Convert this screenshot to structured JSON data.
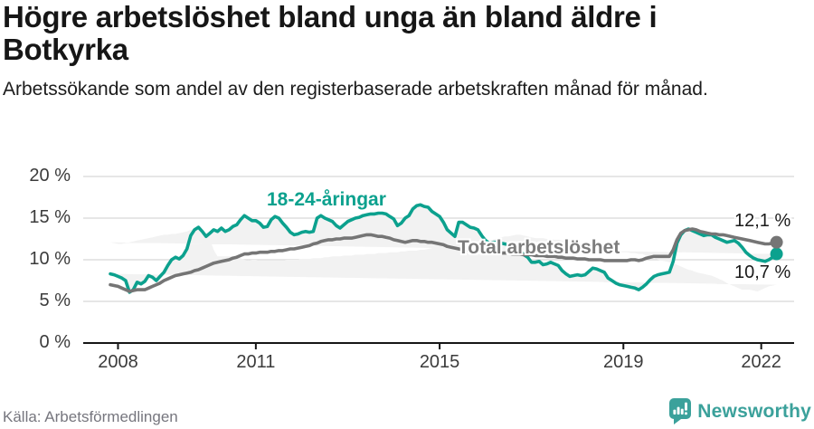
{
  "header": {
    "title": "Högre arbetslöshet bland unga än bland äldre i Botkyrka",
    "subtitle": "Arbetssökande som andel av den registerbaserade arbetskraften månad för månad."
  },
  "chart_data": {
    "type": "line",
    "unit": "%",
    "frequency": "monthly",
    "x_start": "2007-11",
    "grid": "horizontal",
    "ylim": [
      0,
      21.5
    ],
    "y_ticks": [
      "0 %",
      "5 %",
      "10 %",
      "15 %",
      "20 %"
    ],
    "y_tick_values": [
      0,
      5,
      10,
      15,
      20
    ],
    "x_ticks": [
      "2008",
      "2011",
      "2015",
      "2019",
      "2022"
    ],
    "band_fill_color": "#f2f2f2",
    "series": [
      {
        "name": "18-24-åringar",
        "color": "#0ca18e",
        "last_value_label": "10,7 %",
        "values": [
          8.3,
          8.2,
          8.0,
          7.8,
          7.5,
          6.1,
          6.4,
          7.3,
          7.1,
          7.4,
          8.1,
          7.9,
          7.5,
          8.0,
          8.5,
          9.3,
          10.0,
          10.3,
          10.1,
          10.5,
          11.3,
          12.9,
          13.6,
          13.9,
          13.4,
          12.8,
          13.2,
          13.6,
          13.4,
          13.8,
          13.4,
          13.6,
          14.0,
          14.2,
          14.8,
          15.3,
          15.0,
          14.7,
          14.7,
          14.4,
          13.9,
          14.0,
          14.8,
          15.2,
          15.0,
          14.4,
          13.9,
          13.3,
          13.0,
          13.1,
          13.3,
          13.4,
          13.3,
          13.4,
          15.0,
          15.3,
          15.0,
          14.8,
          14.6,
          14.1,
          13.8,
          14.2,
          14.6,
          14.8,
          15.0,
          15.1,
          15.3,
          15.4,
          15.5,
          15.5,
          15.6,
          15.6,
          15.5,
          15.2,
          14.9,
          14.1,
          14.4,
          15.0,
          15.3,
          16.1,
          16.5,
          16.6,
          16.4,
          16.3,
          15.8,
          15.5,
          15.2,
          14.5,
          13.6,
          13.2,
          12.8,
          14.5,
          14.5,
          14.2,
          13.9,
          13.8,
          13.6,
          12.9,
          12.3,
          12.0,
          12.1,
          12.1,
          12.0,
          11.9,
          11.8,
          11.6,
          11.4,
          11.1,
          10.6,
          10.3,
          9.7,
          9.7,
          9.8,
          9.4,
          9.5,
          9.7,
          9.5,
          9.3,
          8.7,
          8.3,
          8.0,
          8.1,
          8.2,
          8.1,
          8.2,
          8.6,
          9.0,
          8.9,
          8.7,
          8.5,
          7.8,
          7.5,
          7.2,
          7.0,
          6.9,
          6.8,
          6.7,
          6.6,
          6.4,
          6.7,
          7.1,
          7.6,
          8.0,
          8.2,
          8.3,
          8.4,
          8.5,
          9.8,
          12.0,
          13.0,
          13.5,
          13.7,
          13.5,
          13.3,
          13.1,
          12.9,
          13.0,
          13.0,
          12.7,
          12.5,
          12.3,
          12.1,
          12.2,
          12.3,
          12.0,
          11.5,
          10.9,
          10.5,
          10.2,
          10.0,
          9.9,
          9.8,
          10.0,
          10.3,
          10.7
        ]
      },
      {
        "name": "Total arbetslöshet",
        "color": "#757575",
        "last_value_label": "12,1 %",
        "values": [
          7.0,
          6.9,
          6.8,
          6.6,
          6.4,
          6.2,
          6.3,
          6.4,
          6.4,
          6.4,
          6.6,
          6.8,
          7.0,
          7.2,
          7.5,
          7.7,
          7.9,
          8.1,
          8.2,
          8.3,
          8.4,
          8.5,
          8.7,
          8.8,
          9.0,
          9.2,
          9.4,
          9.6,
          9.7,
          9.8,
          9.9,
          10.0,
          10.2,
          10.3,
          10.5,
          10.7,
          10.7,
          10.8,
          10.8,
          10.9,
          10.9,
          10.9,
          11.0,
          11.0,
          11.1,
          11.1,
          11.2,
          11.3,
          11.3,
          11.4,
          11.5,
          11.6,
          11.7,
          11.9,
          12.0,
          12.2,
          12.3,
          12.4,
          12.4,
          12.5,
          12.5,
          12.6,
          12.6,
          12.6,
          12.7,
          12.8,
          12.9,
          13.0,
          13.0,
          12.9,
          12.8,
          12.8,
          12.7,
          12.6,
          12.4,
          12.3,
          12.2,
          12.1,
          12.2,
          12.3,
          12.3,
          12.2,
          12.2,
          12.1,
          12.1,
          12.0,
          11.9,
          11.8,
          11.6,
          11.5,
          11.4,
          11.3,
          11.2,
          11.2,
          11.1,
          11.1,
          11.1,
          11.0,
          11.0,
          10.9,
          10.9,
          10.9,
          10.8,
          10.8,
          10.8,
          10.7,
          10.7,
          10.7,
          10.6,
          10.6,
          10.6,
          10.5,
          10.5,
          10.5,
          10.4,
          10.4,
          10.4,
          10.3,
          10.3,
          10.2,
          10.2,
          10.2,
          10.1,
          10.1,
          10.1,
          10.0,
          10.0,
          10.0,
          10.0,
          9.9,
          9.9,
          9.9,
          9.9,
          9.9,
          9.9,
          9.9,
          10.0,
          10.0,
          9.9,
          10.0,
          10.2,
          10.3,
          10.4,
          10.4,
          10.4,
          10.4,
          10.4,
          11.2,
          12.4,
          13.2,
          13.5,
          13.6,
          13.7,
          13.6,
          13.4,
          13.3,
          13.2,
          13.1,
          13.1,
          13.0,
          13.0,
          12.9,
          12.8,
          12.7,
          12.6,
          12.5,
          12.4,
          12.3,
          12.2,
          12.1,
          12.0,
          11.9,
          11.9,
          12.0,
          12.1
        ]
      }
    ]
  },
  "colors": {
    "teal": "#0ca18e",
    "gray_line": "#757575",
    "grid": "#d8d8d8",
    "axis": "#161616",
    "band_fill": "#f2f2f2",
    "brand_teal": "#3ba19b"
  },
  "footer": {
    "source": "Källa: Arbetsförmedlingen",
    "brand": "Newsworthy"
  }
}
